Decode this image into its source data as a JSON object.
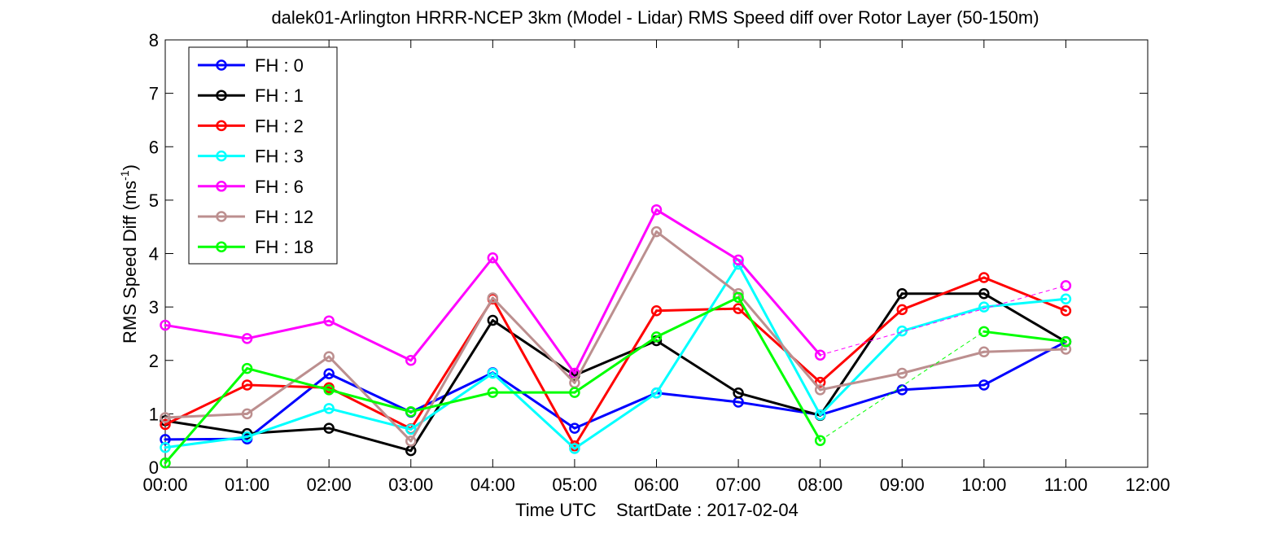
{
  "chart_data": {
    "type": "line",
    "title": "dalek01-Arlington HRRR-NCEP 3km (Model - Lidar) RMS Speed diff over Rotor Layer (50-150m)",
    "xlabel": "Time UTC    StartDate : 2017-02-04",
    "ylabel_main": "RMS Speed Diff (ms",
    "ylabel_sup": "-1",
    "ylabel_close": ")",
    "x_ticks": [
      "00:00",
      "01:00",
      "02:00",
      "03:00",
      "04:00",
      "05:00",
      "06:00",
      "07:00",
      "08:00",
      "09:00",
      "10:00",
      "11:00",
      "12:00"
    ],
    "y_ticks": [
      "0",
      "1",
      "2",
      "3",
      "4",
      "5",
      "6",
      "7",
      "8"
    ],
    "xlim": [
      0,
      12
    ],
    "ylim": [
      0,
      8
    ],
    "grid": false,
    "legend_position": "top-left",
    "series": [
      {
        "name": "FH : 0",
        "color": "#0000ff",
        "points": [
          [
            0,
            0.52
          ],
          [
            1,
            0.53
          ],
          [
            2,
            1.75
          ],
          [
            3,
            1.03
          ],
          [
            4,
            1.77
          ],
          [
            5,
            0.73
          ],
          [
            6,
            1.39
          ],
          [
            7,
            1.22
          ],
          [
            8,
            0.98
          ],
          [
            9,
            1.45
          ],
          [
            10,
            1.54
          ],
          [
            11,
            2.35
          ]
        ],
        "dashed": []
      },
      {
        "name": "FH : 1",
        "color": "#000000",
        "points": [
          [
            0,
            0.87
          ],
          [
            1,
            0.63
          ],
          [
            2,
            0.73
          ],
          [
            3,
            0.31
          ],
          [
            4,
            2.75
          ],
          [
            5,
            1.72
          ],
          [
            6,
            2.37
          ],
          [
            7,
            1.39
          ],
          [
            8,
            0.97
          ],
          [
            9,
            3.25
          ],
          [
            10,
            3.25
          ],
          [
            11,
            2.35
          ]
        ],
        "dashed": []
      },
      {
        "name": "FH : 2",
        "color": "#ff0000",
        "points": [
          [
            0,
            0.8
          ],
          [
            1,
            1.54
          ],
          [
            2,
            1.49
          ],
          [
            3,
            0.72
          ],
          [
            4,
            3.15
          ],
          [
            5,
            0.4
          ],
          [
            6,
            2.93
          ],
          [
            7,
            2.97
          ],
          [
            8,
            1.59
          ],
          [
            9,
            2.95
          ],
          [
            10,
            3.55
          ],
          [
            11,
            2.93
          ]
        ],
        "dashed": []
      },
      {
        "name": "FH : 3",
        "color": "#00ffff",
        "points": [
          [
            0,
            0.37
          ],
          [
            1,
            0.57
          ],
          [
            2,
            1.1
          ],
          [
            3,
            0.71
          ],
          [
            4,
            1.76
          ],
          [
            5,
            0.35
          ],
          [
            6,
            1.39
          ],
          [
            7,
            3.8
          ],
          [
            8,
            0.98
          ],
          [
            9,
            2.55
          ],
          [
            10,
            3.0
          ],
          [
            11,
            3.15
          ]
        ],
        "dashed": []
      },
      {
        "name": "FH : 6",
        "color": "#ff00ff",
        "points": [
          [
            0,
            2.66
          ],
          [
            1,
            2.41
          ],
          [
            2,
            2.74
          ],
          [
            3,
            2.0
          ],
          [
            4,
            3.92
          ],
          [
            5,
            1.76
          ],
          [
            6,
            4.82
          ],
          [
            7,
            3.88
          ],
          [
            8,
            2.1
          ],
          [
            11,
            3.4
          ]
        ],
        "dashed": [
          [
            8,
            11
          ]
        ]
      },
      {
        "name": "FH : 12",
        "color": "#bc8f8f",
        "points": [
          [
            0,
            0.93
          ],
          [
            1,
            1.0
          ],
          [
            2,
            2.07
          ],
          [
            3,
            0.49
          ],
          [
            4,
            3.17
          ],
          [
            5,
            1.58
          ],
          [
            6,
            4.41
          ],
          [
            7,
            3.25
          ],
          [
            8,
            1.45
          ],
          [
            9,
            1.76
          ],
          [
            10,
            2.16
          ],
          [
            11,
            2.21
          ]
        ],
        "dashed": []
      },
      {
        "name": "FH : 18",
        "color": "#00ff00",
        "points": [
          [
            0,
            0.08
          ],
          [
            1,
            1.85
          ],
          [
            2,
            1.45
          ],
          [
            3,
            1.04
          ],
          [
            4,
            1.4
          ],
          [
            5,
            1.4
          ],
          [
            6,
            2.44
          ],
          [
            7,
            3.18
          ],
          [
            8,
            0.5
          ],
          [
            10,
            2.54
          ],
          [
            11,
            2.35
          ]
        ],
        "dashed": [
          [
            8,
            10
          ]
        ]
      }
    ]
  }
}
